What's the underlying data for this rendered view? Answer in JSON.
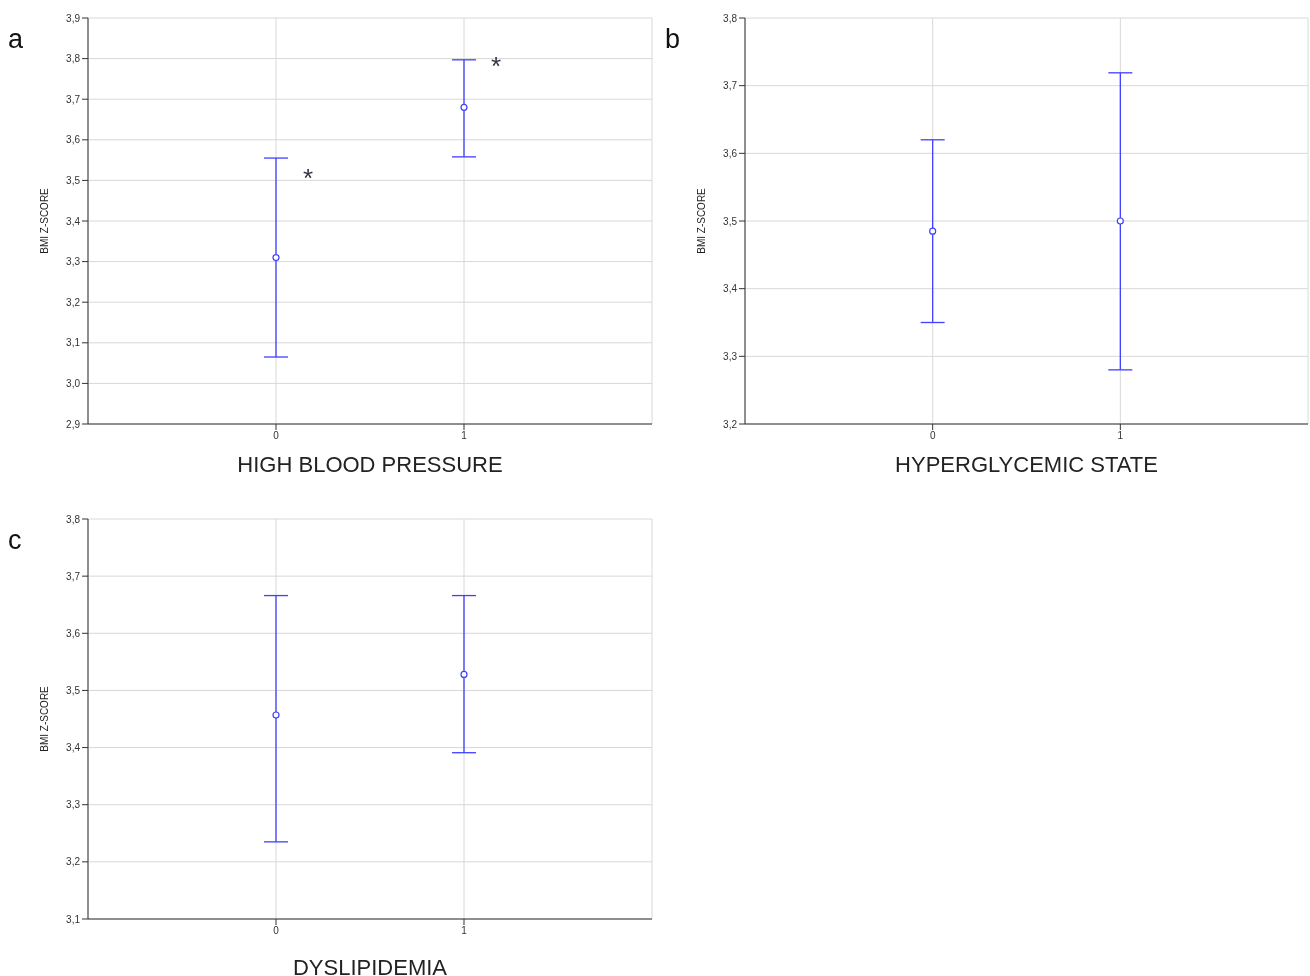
{
  "chart_data": [
    {
      "type": "scatter",
      "title": "a",
      "xlabel": "HIGH  BLOOD PRESSURE",
      "ylabel": "BMI Z-SCORE",
      "categories": [
        "0",
        "1"
      ],
      "ylim": [
        2.9,
        3.9
      ],
      "yticks": [
        {
          "value": 2.9,
          "label": "2,9"
        },
        {
          "value": 3.0,
          "label": "3,0"
        },
        {
          "value": 3.1,
          "label": "3,1"
        },
        {
          "value": 3.2,
          "label": "3,2"
        },
        {
          "value": 3.3,
          "label": "3,3"
        },
        {
          "value": 3.4,
          "label": "3,4"
        },
        {
          "value": 3.5,
          "label": "3,5"
        },
        {
          "value": 3.6,
          "label": "3,6"
        },
        {
          "value": 3.7,
          "label": "3,7"
        },
        {
          "value": 3.8,
          "label": "3,8"
        },
        {
          "value": 3.9,
          "label": "3,9"
        }
      ],
      "grid": true,
      "marker": "circle",
      "series": [
        {
          "color": "#4040ff",
          "values": [
            3.31,
            3.68
          ],
          "errors": [
            [
              3.065,
              3.555
            ],
            [
              3.558,
              3.797
            ]
          ]
        }
      ],
      "annotations": [
        "*",
        "*"
      ]
    },
    {
      "type": "scatter",
      "title": "b",
      "xlabel": "HYPERGLYCEMIC  STATE",
      "ylabel": "BMI Z-SCORE",
      "categories": [
        "0",
        "1"
      ],
      "ylim": [
        3.2,
        3.8
      ],
      "yticks": [
        {
          "value": 3.2,
          "label": "3,2"
        },
        {
          "value": 3.3,
          "label": "3,3"
        },
        {
          "value": 3.4,
          "label": "3,4"
        },
        {
          "value": 3.5,
          "label": "3,5"
        },
        {
          "value": 3.6,
          "label": "3,6"
        },
        {
          "value": 3.7,
          "label": "3,7"
        },
        {
          "value": 3.8,
          "label": "3,8"
        }
      ],
      "grid": true,
      "marker": "circle",
      "series": [
        {
          "color": "#4040ff",
          "values": [
            3.485,
            3.5
          ],
          "errors": [
            [
              3.35,
              3.62
            ],
            [
              3.28,
              3.719
            ]
          ]
        }
      ]
    },
    {
      "type": "scatter",
      "title": "c",
      "xlabel": "DYSLIPIDEMIA",
      "ylabel": "BMI Z-SCORE",
      "categories": [
        "0",
        "1"
      ],
      "ylim": [
        3.1,
        3.8
      ],
      "yticks": [
        {
          "value": 3.1,
          "label": "3,1"
        },
        {
          "value": 3.2,
          "label": "3,2"
        },
        {
          "value": 3.3,
          "label": "3,3"
        },
        {
          "value": 3.4,
          "label": "3,4"
        },
        {
          "value": 3.5,
          "label": "3,5"
        },
        {
          "value": 3.6,
          "label": "3,6"
        },
        {
          "value": 3.7,
          "label": "3,7"
        },
        {
          "value": 3.8,
          "label": "3,8"
        }
      ],
      "grid": true,
      "marker": "circle",
      "series": [
        {
          "color": "#4040ff",
          "values": [
            3.457,
            3.528
          ],
          "errors": [
            [
              3.235,
              3.666
            ],
            [
              3.391,
              3.666
            ]
          ]
        }
      ]
    }
  ]
}
